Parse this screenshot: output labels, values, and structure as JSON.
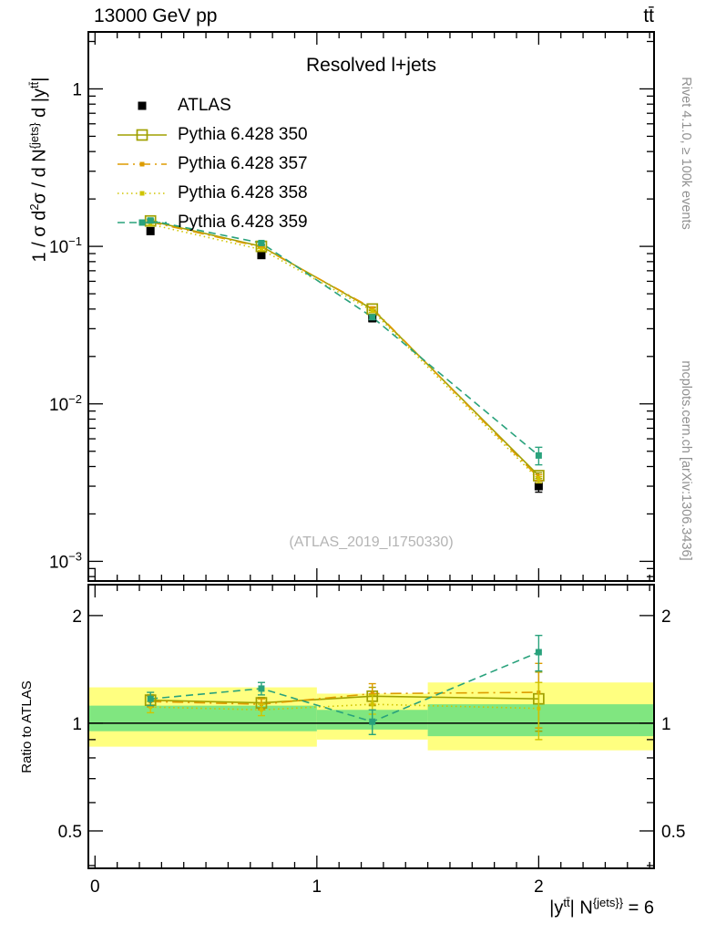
{
  "header": {
    "left": "13000 GeV pp",
    "right": "tt̄"
  },
  "main": {
    "title": "Resolved l+jets",
    "watermark": "(ATLAS_2019_I1750330)"
  },
  "side_notes": {
    "top": "Rivet 4.1.0, ≥ 100k events",
    "bottom": "mcplots.cern.ch [arXiv:1306.3436]"
  },
  "labels": {
    "y_main": {
      "p0": "1 / σ d",
      "s1": "2",
      "p2": "σ / d N",
      "s3": "{jets}",
      "p4": " d |y",
      "s5": "tt̄",
      "p6": "|"
    },
    "y_ratio": "Ratio to ATLAS",
    "x": {
      "p0": "|y",
      "s1": "tt̄",
      "p2": "| N",
      "s3": "{jets}}",
      "p4": " = 6"
    }
  },
  "chart_data": [
    {
      "type": "line",
      "title": "Resolved l+jets",
      "xlabel": "|y^{tt̄}| N^{jets}} = 6",
      "ylabel": "1 / σ d²σ / d N^{jets} d |y^{tt̄}|",
      "yscale": "log",
      "grid": false,
      "legend_position": "upper-left",
      "xlim": [
        -0.03,
        2.52
      ],
      "ylim": [
        0.00075,
        2.3
      ],
      "x": [
        0.25,
        0.75,
        1.25,
        2.0
      ],
      "xticks": [
        {
          "v": 0,
          "label": "0"
        },
        {
          "v": 1,
          "label": "1"
        },
        {
          "v": 2,
          "label": "2"
        }
      ],
      "yticks": [
        {
          "v": 1,
          "label": "1"
        },
        {
          "v": 0.1,
          "label": "10",
          "exp": "−1"
        },
        {
          "v": 0.01,
          "label": "10",
          "exp": "−2"
        },
        {
          "v": 0.001,
          "label": "10",
          "exp": "−3"
        }
      ],
      "series": [
        {
          "name": "ATLAS",
          "color": "#000000",
          "line": "none",
          "marker": "square-filled",
          "msize": 9,
          "values": [
            0.125,
            0.088,
            0.035,
            0.003
          ],
          "yerr": [
            0.005,
            0.0035,
            0.0018,
            0.00025
          ]
        },
        {
          "name": "Pythia 6.428 350",
          "color": "#a0a000",
          "line": "solid",
          "marker": "square-open",
          "msize": 11,
          "values": [
            0.145,
            0.1,
            0.04,
            0.0035
          ],
          "yerr": [
            0.002,
            0.0015,
            0.0008,
            0.00015
          ]
        },
        {
          "name": "Pythia 6.428 357",
          "color": "#dd9c00",
          "line": "dashdot",
          "marker": "square-filled",
          "msize": 4,
          "values": [
            0.143,
            0.099,
            0.0405,
            0.0034
          ],
          "yerr": [
            0.002,
            0.0015,
            0.0008,
            0.00015
          ]
        },
        {
          "name": "Pythia 6.428 358",
          "color": "#cfc400",
          "line": "dotted",
          "marker": "square-filled",
          "msize": 4,
          "values": [
            0.138,
            0.0955,
            0.039,
            0.0033
          ],
          "yerr": [
            0.002,
            0.0015,
            0.0008,
            0.00015
          ]
        },
        {
          "name": "Pythia 6.428 359",
          "color": "#29a27c",
          "line": "dashed",
          "marker": "square-filled",
          "msize": 7,
          "values": [
            0.146,
            0.105,
            0.0355,
            0.0047
          ],
          "yerr": [
            0.003,
            0.002,
            0.0012,
            0.0006
          ]
        }
      ]
    },
    {
      "type": "ratio",
      "ylabel": "Ratio to ATLAS",
      "yscale": "log",
      "xlim": [
        -0.03,
        2.52
      ],
      "ylim": [
        0.393,
        2.44
      ],
      "x": [
        0.25,
        0.75,
        1.25,
        2.0
      ],
      "xticks": [
        {
          "v": 0,
          "label": "0"
        },
        {
          "v": 1,
          "label": "1"
        },
        {
          "v": 2,
          "label": "2"
        }
      ],
      "yticks": [
        {
          "v": 0.5,
          "label": "0.5"
        },
        {
          "v": 1,
          "label": "1"
        },
        {
          "v": 2,
          "label": "2"
        }
      ],
      "reference": {
        "value": 1,
        "color": "#000000"
      },
      "bands": {
        "yellow": {
          "color": "#ffff80",
          "bins": [
            {
              "x0": 0,
              "x1": 1,
              "lo": 0.86,
              "hi": 1.26
            },
            {
              "x0": 1,
              "x1": 1.5,
              "lo": 0.9,
              "hi": 1.21
            },
            {
              "x0": 1.5,
              "x1": 2.5,
              "lo": 0.84,
              "hi": 1.3
            }
          ]
        },
        "green": {
          "color": "#80e680",
          "bins": [
            {
              "x0": 0,
              "x1": 1,
              "lo": 0.95,
              "hi": 1.12
            },
            {
              "x0": 1,
              "x1": 1.5,
              "lo": 0.96,
              "hi": 1.09
            },
            {
              "x0": 1.5,
              "x1": 2.5,
              "lo": 0.92,
              "hi": 1.13
            }
          ]
        }
      },
      "series": [
        {
          "name": "Pythia 6.428 350",
          "color": "#a0a000",
          "line": "solid",
          "marker": "square-open",
          "msize": 11,
          "values": [
            1.16,
            1.14,
            1.19,
            1.17
          ],
          "yerr": [
            0.04,
            0.04,
            0.07,
            0.22
          ]
        },
        {
          "name": "Pythia 6.428 357",
          "color": "#dd9c00",
          "line": "dashdot",
          "marker": "square-filled",
          "msize": 4,
          "values": [
            1.15,
            1.13,
            1.21,
            1.22
          ],
          "yerr": [
            0.04,
            0.04,
            0.08,
            0.25
          ]
        },
        {
          "name": "Pythia 6.428 358",
          "color": "#cfc400",
          "line": "dotted",
          "marker": "square-filled",
          "msize": 4,
          "values": [
            1.11,
            1.09,
            1.13,
            1.1
          ],
          "yerr": [
            0.04,
            0.04,
            0.07,
            0.2
          ]
        },
        {
          "name": "Pythia 6.428 359",
          "color": "#29a27c",
          "line": "dashed",
          "marker": "square-filled",
          "msize": 7,
          "values": [
            1.17,
            1.25,
            1.01,
            1.58
          ],
          "yerr": [
            0.05,
            0.05,
            0.08,
            0.18
          ]
        }
      ]
    }
  ]
}
